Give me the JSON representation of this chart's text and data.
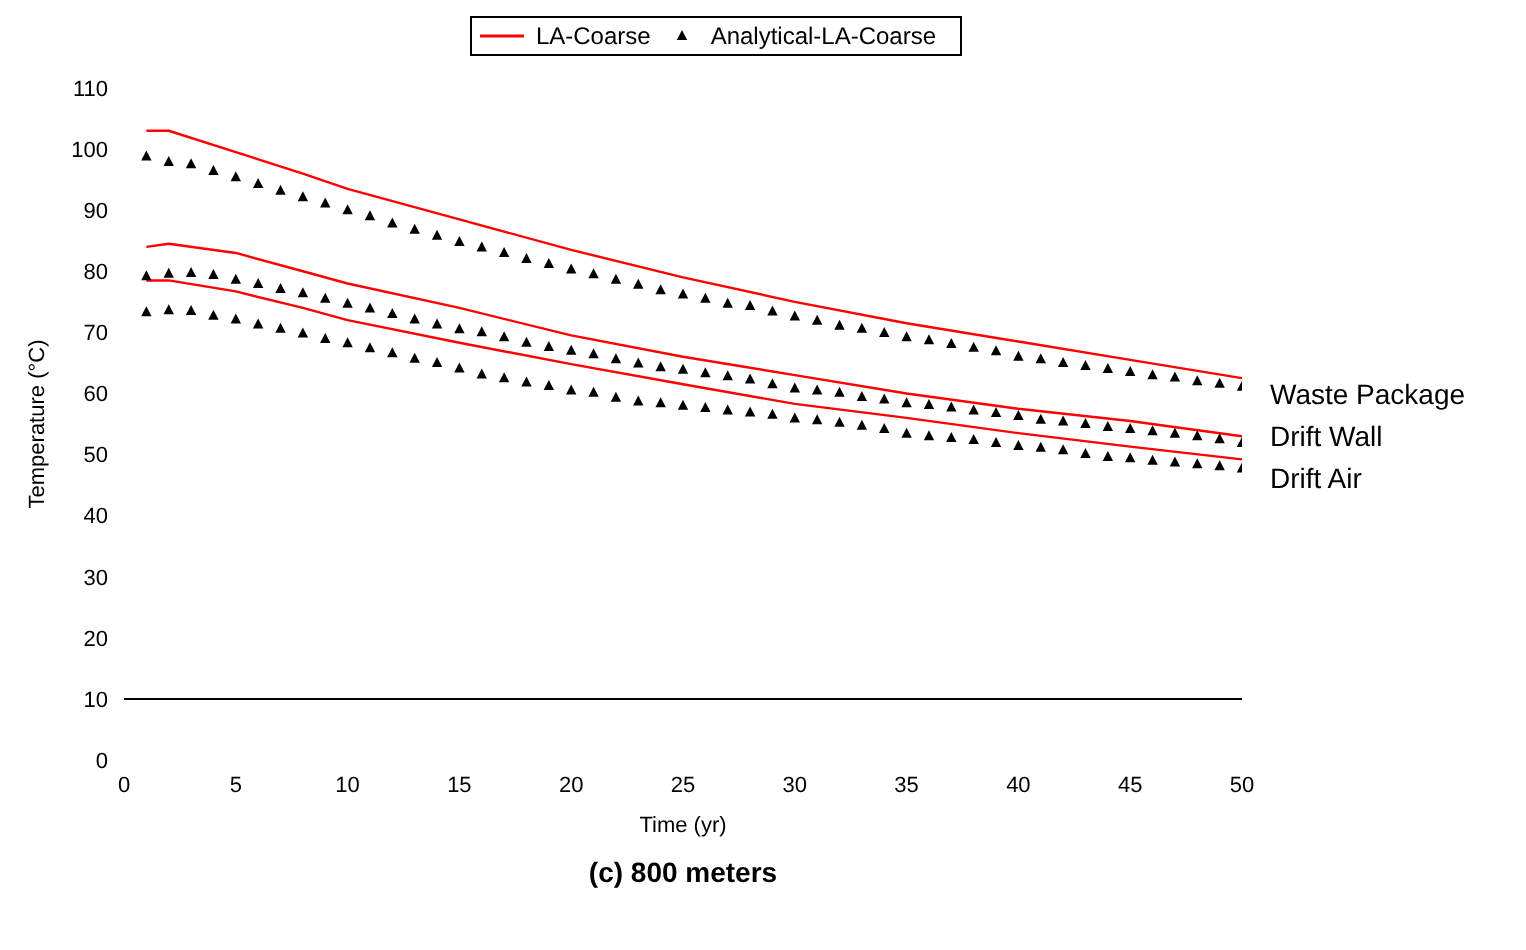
{
  "chart_data": {
    "type": "line",
    "title": "(c) 800 meters",
    "xlabel": "Time (yr)",
    "ylabel": "Temperature (°C)",
    "xlim": [
      0,
      50
    ],
    "xticks": [
      0,
      5,
      10,
      15,
      20,
      25,
      30,
      35,
      40,
      45,
      50
    ],
    "ylim": [
      0,
      110
    ],
    "yticks": [
      0,
      10,
      20,
      30,
      40,
      50,
      60,
      70,
      80,
      90,
      100,
      110
    ],
    "grid": false,
    "legend": "top",
    "ref_lines": [
      {
        "axis": "y",
        "value": 10,
        "label": null,
        "color": "#000000"
      }
    ],
    "annotations": [
      "Waste Package",
      "Drift Wall",
      "Drift Air"
    ],
    "series": [
      {
        "name": "LA-Coarse",
        "type": "line",
        "color": "#ff0000",
        "marker": "none",
        "x": [
          1,
          2,
          5,
          8,
          10,
          15,
          20,
          25,
          30,
          35,
          40,
          45,
          50
        ],
        "values": [
          103,
          103,
          99.5,
          96,
          93.5,
          88.5,
          83.5,
          79,
          75,
          71.5,
          68.5,
          65.5,
          62.5
        ]
      },
      {
        "type": "line",
        "color": "#ff0000",
        "marker": "none",
        "x": [
          1,
          2,
          5,
          8,
          10,
          15,
          20,
          25,
          30,
          35,
          40,
          45,
          50
        ],
        "values": [
          84,
          84.5,
          83,
          80,
          78,
          74,
          69.5,
          66,
          63,
          60,
          57.5,
          55.5,
          53
        ]
      },
      {
        "type": "line",
        "color": "#ff0000",
        "marker": "none",
        "x": [
          1,
          2,
          5,
          8,
          10,
          15,
          20,
          25,
          30,
          35,
          40,
          45,
          50
        ],
        "values": [
          78.5,
          78.5,
          76.7,
          74,
          72,
          68.3,
          64.8,
          61.5,
          58.3,
          56,
          53.5,
          51.3,
          49.2
        ]
      },
      {
        "name": "Analytical-LA-Coarse",
        "type": "scatter",
        "color": "#000000",
        "marker": "triangle",
        "x": [
          1,
          2,
          3,
          4,
          5,
          6,
          7,
          8,
          9,
          10,
          11,
          12,
          13,
          14,
          15,
          16,
          17,
          18,
          19,
          20,
          21,
          22,
          23,
          24,
          25,
          26,
          27,
          28,
          29,
          30,
          31,
          32,
          33,
          34,
          35,
          36,
          37,
          38,
          39,
          40,
          41,
          42,
          43,
          44,
          45,
          46,
          47,
          48,
          49,
          50
        ],
        "values": [
          98.8,
          97.9,
          97.5,
          96.4,
          95.4,
          94.3,
          93.2,
          92.1,
          91.1,
          90.0,
          89.0,
          87.8,
          86.8,
          85.8,
          84.8,
          83.9,
          83.0,
          82.0,
          81.2,
          80.3,
          79.5,
          78.6,
          77.8,
          76.9,
          76.2,
          75.5,
          74.7,
          74.3,
          73.4,
          72.6,
          71.9,
          71.1,
          70.6,
          69.9,
          69.2,
          68.7,
          68.1,
          67.5,
          66.9,
          66.0,
          65.6,
          65.0,
          64.5,
          64.0,
          63.5,
          63.0,
          62.6,
          62.0,
          61.6,
          61.1
        ]
      },
      {
        "type": "scatter",
        "color": "#000000",
        "marker": "triangle",
        "x": [
          1,
          2,
          3,
          4,
          5,
          6,
          7,
          8,
          9,
          10,
          11,
          12,
          13,
          14,
          15,
          16,
          17,
          18,
          19,
          20,
          21,
          22,
          23,
          24,
          25,
          26,
          27,
          28,
          29,
          30,
          31,
          32,
          33,
          34,
          35,
          36,
          37,
          38,
          39,
          40,
          41,
          42,
          43,
          44,
          45,
          46,
          47,
          48,
          49,
          50
        ],
        "values": [
          79.2,
          79.6,
          79.7,
          79.4,
          78.6,
          77.9,
          77.1,
          76.4,
          75.5,
          74.7,
          73.9,
          73.0,
          72.1,
          71.3,
          70.5,
          70.0,
          69.2,
          68.3,
          67.6,
          67.0,
          66.4,
          65.6,
          64.9,
          64.3,
          63.9,
          63.3,
          62.8,
          62.3,
          61.5,
          60.8,
          60.5,
          60.1,
          59.4,
          59.0,
          58.4,
          58.1,
          57.7,
          57.2,
          56.8,
          56.3,
          55.7,
          55.4,
          55.0,
          54.5,
          54.2,
          53.8,
          53.4,
          53.0,
          52.5,
          51.9
        ]
      },
      {
        "type": "scatter",
        "color": "#000000",
        "marker": "triangle",
        "x": [
          1,
          2,
          3,
          4,
          5,
          6,
          7,
          8,
          9,
          10,
          11,
          12,
          13,
          14,
          15,
          16,
          17,
          18,
          19,
          20,
          21,
          22,
          23,
          24,
          25,
          26,
          27,
          28,
          29,
          30,
          31,
          32,
          33,
          34,
          35,
          36,
          37,
          38,
          39,
          40,
          41,
          42,
          43,
          44,
          45,
          46,
          47,
          48,
          49,
          50
        ],
        "values": [
          73.3,
          73.6,
          73.5,
          72.7,
          72.1,
          71.3,
          70.6,
          69.8,
          68.9,
          68.2,
          67.4,
          66.6,
          65.7,
          65.0,
          64.1,
          63.1,
          62.5,
          61.8,
          61.2,
          60.5,
          60.1,
          59.3,
          58.7,
          58.4,
          58.0,
          57.6,
          57.2,
          56.9,
          56.5,
          55.9,
          55.6,
          55.2,
          54.7,
          54.2,
          53.4,
          53.0,
          52.7,
          52.4,
          51.9,
          51.4,
          51.1,
          50.7,
          50.1,
          49.6,
          49.4,
          49.0,
          48.7,
          48.4,
          48.1,
          47.7
        ]
      }
    ]
  }
}
